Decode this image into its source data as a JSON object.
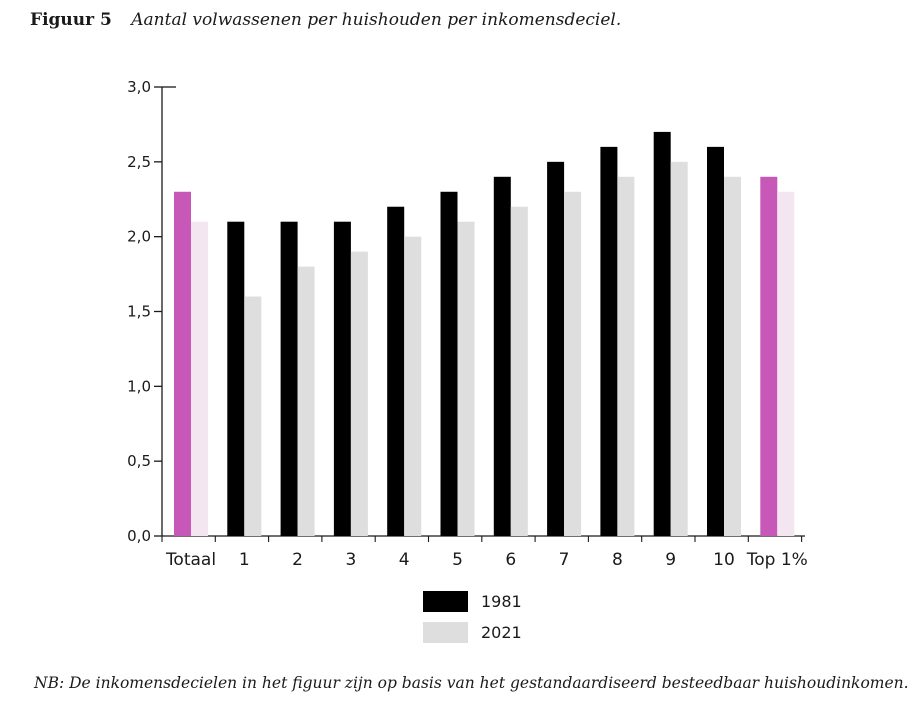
{
  "figure": {
    "label": "Figuur 5",
    "title": "Aantal volwassenen per huishouden per inkomensdeciel."
  },
  "note": "NB: De inkomensdecielen in het figuur zijn op basis van het gestandaardiseerd besteedbaar huishoudinkomen.",
  "colors": {
    "series_1981": "#000000",
    "series_2021": "#dedede",
    "highlight_1981": "#c858b8",
    "highlight_2021": "#f3e6f0",
    "axis": "#1a1a1a"
  },
  "chart_data": {
    "type": "bar",
    "categories": [
      "Totaal",
      "1",
      "2",
      "3",
      "4",
      "5",
      "6",
      "7",
      "8",
      "9",
      "10",
      "Top 1%"
    ],
    "highlighted_categories": [
      "Totaal",
      "Top 1%"
    ],
    "series": [
      {
        "name": "1981",
        "values": [
          2.3,
          2.1,
          2.1,
          2.1,
          2.2,
          2.3,
          2.4,
          2.5,
          2.6,
          2.7,
          2.6,
          2.4
        ]
      },
      {
        "name": "2021",
        "values": [
          2.1,
          1.6,
          1.8,
          1.9,
          2.0,
          2.1,
          2.2,
          2.3,
          2.4,
          2.5,
          2.4,
          2.3
        ]
      }
    ],
    "yticks": [
      "0,0",
      "0,5",
      "1,0",
      "1,5",
      "2,0",
      "2,5",
      "3,0"
    ],
    "ylim": [
      0,
      3.0
    ],
    "grid": false,
    "legend_position": "bottom-center"
  }
}
